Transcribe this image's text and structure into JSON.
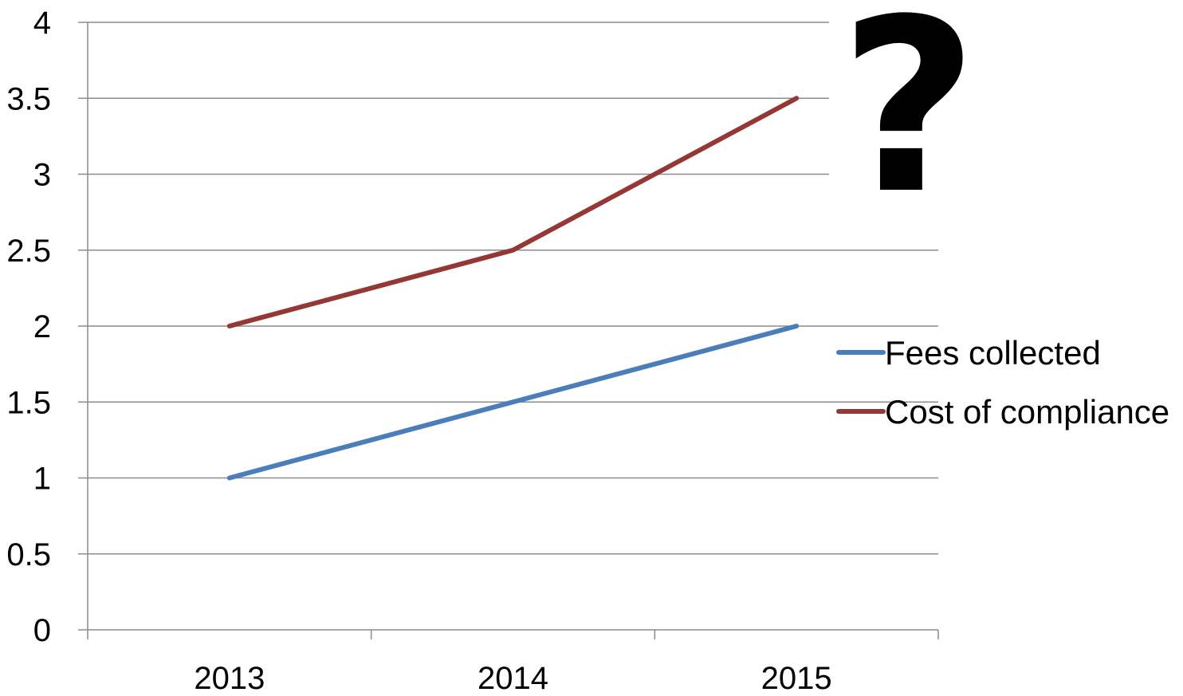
{
  "chart_data": {
    "type": "line",
    "categories": [
      "2013",
      "2014",
      "2015"
    ],
    "series": [
      {
        "name": "Fees collected",
        "values": [
          1,
          1.5,
          2
        ],
        "color": "#4a7ebb"
      },
      {
        "name": "Cost of compliance",
        "values": [
          2,
          2.5,
          3.5
        ],
        "color": "#953735"
      }
    ],
    "y_ticks": [
      "0",
      "0.5",
      "1",
      "1.5",
      "2",
      "2.5",
      "3",
      "3.5",
      "4"
    ],
    "ylim": [
      0,
      4
    ],
    "grid": true,
    "legend_position": "right"
  },
  "annotation": {
    "icon": "question-mark-icon",
    "symbol": "?"
  }
}
